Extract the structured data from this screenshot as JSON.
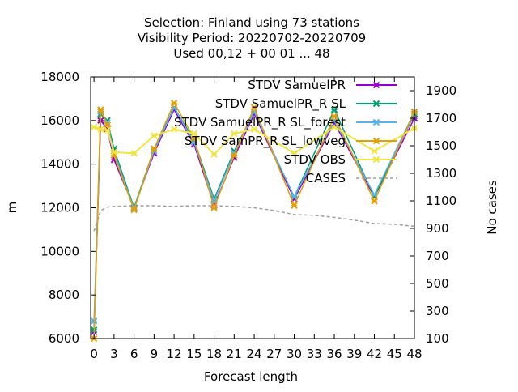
{
  "chart_data": {
    "type": "line",
    "title_lines": [
      "Selection: Finland using    73 stations",
      "Visibility   Period: 20220702-20220709",
      "Used  00,12  + 00 01 ... 48"
    ],
    "xlabel": "Forecast length",
    "ylabel": "m",
    "y2label": "No cases",
    "xlim": [
      -0.5,
      48
    ],
    "ylim": [
      6000,
      18000
    ],
    "y2lim": [
      100,
      2000
    ],
    "xticks": [
      0,
      3,
      6,
      9,
      12,
      15,
      18,
      21,
      24,
      27,
      30,
      33,
      36,
      39,
      42,
      45,
      48
    ],
    "yticks": [
      6000,
      8000,
      10000,
      12000,
      14000,
      16000,
      18000
    ],
    "y2ticks": [
      100,
      300,
      500,
      700,
      900,
      1100,
      1300,
      1500,
      1700,
      1900
    ],
    "legend_position": "top-right",
    "x": [
      0,
      1,
      2,
      3,
      6,
      9,
      12,
      15,
      18,
      21,
      24,
      30,
      36,
      42,
      48
    ],
    "series": [
      {
        "name": "STDV SamuelPR",
        "color": "#9400d3",
        "marker": "x",
        "values": [
          6300,
          16000,
          15600,
          14200,
          12000,
          14500,
          16500,
          14900,
          12100,
          14300,
          16300,
          12400,
          15900,
          12500,
          16100
        ]
      },
      {
        "name": "STDV SamuelPR_R SL",
        "color": "#009e73",
        "marker": "x",
        "values": [
          6400,
          16300,
          16000,
          14700,
          12000,
          14700,
          16600,
          15100,
          12400,
          14600,
          16400,
          12500,
          16500,
          12500,
          16300
        ]
      },
      {
        "name": "STDV SamuelPR_R SL_forest",
        "color": "#56b4e9",
        "marker": "x",
        "values": [
          6800,
          16400,
          15900,
          14500,
          11950,
          14600,
          16600,
          15000,
          12300,
          14500,
          16400,
          12500,
          16000,
          12600,
          16400
        ]
      },
      {
        "name": "STDV SamPR_R SL_lowveg",
        "color": "#e69f00",
        "marker": "x",
        "values": [
          6000,
          16500,
          15800,
          14400,
          11900,
          14700,
          16800,
          15200,
          12000,
          14400,
          16600,
          12100,
          16200,
          12300,
          16400
        ]
      },
      {
        "name": "STDV OBS",
        "color": "#f0e442",
        "marker": "x",
        "values": [
          15700,
          15600,
          15550,
          14550,
          14500,
          15300,
          15600,
          15400,
          14450,
          15400,
          15600,
          14500,
          15700,
          14600,
          15650
        ]
      }
    ],
    "cases": {
      "name": "CASES",
      "color": "#a0a0a0",
      "axis": "y2",
      "x": [
        0,
        1,
        2,
        3,
        6,
        9,
        12,
        15,
        18,
        21,
        24,
        27,
        30,
        33,
        36,
        39,
        42,
        45,
        48
      ],
      "values": [
        880,
        1030,
        1055,
        1060,
        1065,
        1065,
        1060,
        1065,
        1065,
        1060,
        1050,
        1030,
        1000,
        995,
        980,
        960,
        935,
        930,
        915
      ]
    }
  }
}
